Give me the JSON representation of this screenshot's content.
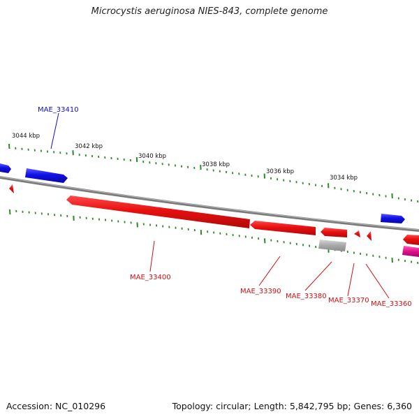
{
  "title": "Microcystis aeruginosa NIES-843, complete genome",
  "footer": {
    "accession": "Accession: NC_010296",
    "summary": "Topology: circular; Length: 5,842,795 bp; Genes: 6,360"
  },
  "colors": {
    "backbone": "#8a8a8a",
    "tick": "#2a8a2a",
    "forward_gene": "#1010e0",
    "reverse_gene": "#e81010",
    "gray_gene": "#b0b0b0",
    "pink_gene": "#e0108a",
    "forward_label": "#1010c0",
    "reverse_label": "#d01010"
  },
  "scale_labels": [
    {
      "text": "3044 kbp",
      "kbp": 3044
    },
    {
      "text": "3042 kbp",
      "kbp": 3042
    },
    {
      "text": "3040 kbp",
      "kbp": 3040
    },
    {
      "text": "3038 kbp",
      "kbp": 3038
    },
    {
      "text": "3036 kbp",
      "kbp": 3036
    },
    {
      "text": "3034 kbp",
      "kbp": 3034
    }
  ],
  "gene_labels": [
    {
      "text": "MAE_33410",
      "strand": "forward"
    },
    {
      "text": "MAE_33400",
      "strand": "reverse"
    },
    {
      "text": "MAE_33390",
      "strand": "reverse"
    },
    {
      "text": "MAE_33380",
      "strand": "reverse"
    },
    {
      "text": "MAE_33370",
      "strand": "reverse"
    },
    {
      "text": "MAE_33360",
      "strand": "reverse"
    }
  ]
}
